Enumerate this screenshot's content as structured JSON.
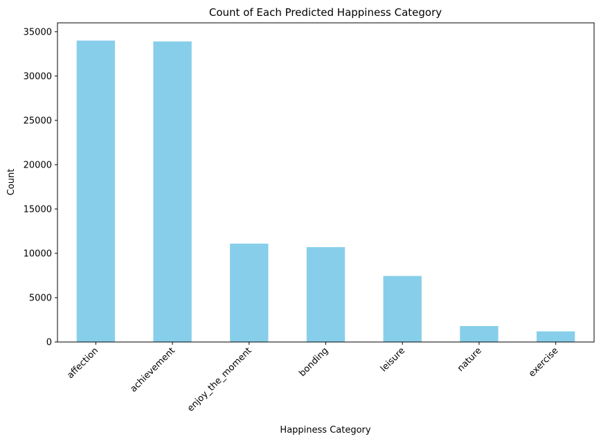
{
  "chart_data": {
    "type": "bar",
    "title": "Count of Each Predicted Happiness Category",
    "xlabel": "Happiness Category",
    "ylabel": "Count",
    "categories": [
      "affection",
      "achievement",
      "enjoy_the_moment",
      "bonding",
      "leisure",
      "nature",
      "exercise"
    ],
    "values": [
      34000,
      33900,
      11100,
      10700,
      7450,
      1800,
      1200
    ],
    "ylim": [
      0,
      36000
    ],
    "yticks": [
      0,
      5000,
      10000,
      15000,
      20000,
      25000,
      30000,
      35000
    ],
    "ytick_labels": [
      "0",
      "5000",
      "10000",
      "15000",
      "20000",
      "25000",
      "30000",
      "35000"
    ],
    "xtick_rotation_deg": 45,
    "grid": false,
    "legend": "none",
    "bar_color": "#87CEEB"
  }
}
